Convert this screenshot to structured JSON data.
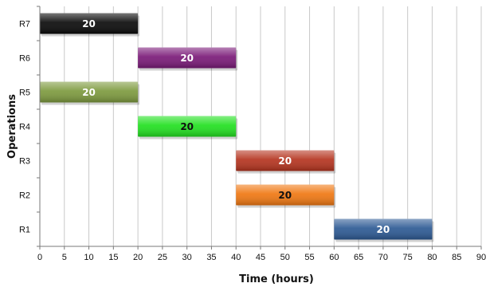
{
  "chart_data": {
    "type": "bar",
    "orientation": "horizontal",
    "xlabel": "Time (hours)",
    "ylabel": "Operations",
    "xlim": [
      0,
      90
    ],
    "xticks": [
      0,
      5,
      10,
      15,
      20,
      25,
      30,
      35,
      40,
      45,
      50,
      55,
      60,
      65,
      70,
      75,
      80,
      85,
      90
    ],
    "grid": true,
    "categories": [
      "R1",
      "R2",
      "R3",
      "R4",
      "R5",
      "R6",
      "R7"
    ],
    "bars": [
      {
        "category": "R7",
        "start": 0,
        "end": 20,
        "label": "20",
        "color": "#0a0a0a",
        "label_color": "#ffffff"
      },
      {
        "category": "R6",
        "start": 20,
        "end": 40,
        "label": "20",
        "color": "#7a1a78",
        "label_color": "#ffffff"
      },
      {
        "category": "R5",
        "start": 0,
        "end": 20,
        "label": "20",
        "color": "#7d9a3e",
        "label_color": "#ffffff"
      },
      {
        "category": "R4",
        "start": 20,
        "end": 40,
        "label": "20",
        "color": "#22e020",
        "label_color": "#111111"
      },
      {
        "category": "R3",
        "start": 40,
        "end": 60,
        "label": "20",
        "color": "#b5341f",
        "label_color": "#ffffff"
      },
      {
        "category": "R2",
        "start": 40,
        "end": 60,
        "label": "20",
        "color": "#f07812",
        "label_color": "#111111"
      },
      {
        "category": "R1",
        "start": 60,
        "end": 80,
        "label": "20",
        "color": "#2d5a94",
        "label_color": "#ffffff"
      }
    ]
  }
}
